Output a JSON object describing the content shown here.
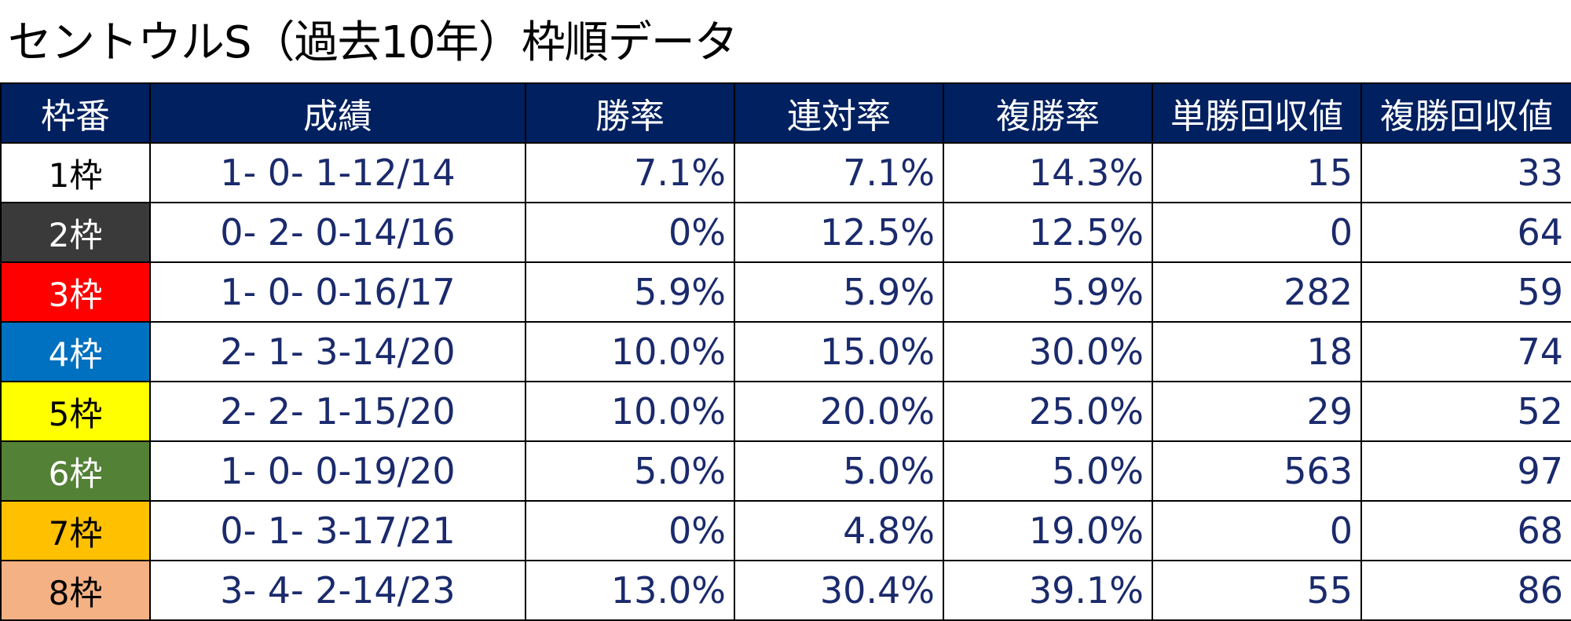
{
  "title": "セントウルS（過去10年）枠順データ",
  "headers": [
    "枠番",
    "成績",
    "勝率",
    "連対率",
    "複勝率",
    "単勝回収値",
    "複勝回収値"
  ],
  "rows": [
    {
      "frame": "1枠",
      "frame_bg": "#ffffff",
      "frame_fg": "#000000",
      "record": "1- 0- 1-12/14",
      "win_rate": "7.1%",
      "place2_rate": "7.1%",
      "show_rate": "14.3%",
      "win_return": "15",
      "show_return": "33"
    },
    {
      "frame": "2枠",
      "frame_bg": "#3a3a3a",
      "frame_fg": "#ffffff",
      "record": "0- 2- 0-14/16",
      "win_rate": "0%",
      "place2_rate": "12.5%",
      "show_rate": "12.5%",
      "win_return": "0",
      "show_return": "64"
    },
    {
      "frame": "3枠",
      "frame_bg": "#ff0000",
      "frame_fg": "#ffffff",
      "record": "1- 0- 0-16/17",
      "win_rate": "5.9%",
      "place2_rate": "5.9%",
      "show_rate": "5.9%",
      "win_return": "282",
      "show_return": "59"
    },
    {
      "frame": "4枠",
      "frame_bg": "#0070c0",
      "frame_fg": "#ffffff",
      "record": "2- 1- 3-14/20",
      "win_rate": "10.0%",
      "place2_rate": "15.0%",
      "show_rate": "30.0%",
      "win_return": "18",
      "show_return": "74"
    },
    {
      "frame": "5枠",
      "frame_bg": "#ffff00",
      "frame_fg": "#000000",
      "record": "2- 2- 1-15/20",
      "win_rate": "10.0%",
      "place2_rate": "20.0%",
      "show_rate": "25.0%",
      "win_return": "29",
      "show_return": "52"
    },
    {
      "frame": "6枠",
      "frame_bg": "#538135",
      "frame_fg": "#ffffff",
      "record": "1- 0- 0-19/20",
      "win_rate": "5.0%",
      "place2_rate": "5.0%",
      "show_rate": "5.0%",
      "win_return": "563",
      "show_return": "97"
    },
    {
      "frame": "7枠",
      "frame_bg": "#ffc000",
      "frame_fg": "#000000",
      "record": "0- 1- 3-17/21",
      "win_rate": "0%",
      "place2_rate": "4.8%",
      "show_rate": "19.0%",
      "win_return": "0",
      "show_return": "68"
    },
    {
      "frame": "8枠",
      "frame_bg": "#f4b183",
      "frame_fg": "#000000",
      "record": "3- 4- 2-14/23",
      "win_rate": "13.0%",
      "place2_rate": "30.4%",
      "show_rate": "39.1%",
      "win_return": "55",
      "show_return": "86"
    }
  ]
}
